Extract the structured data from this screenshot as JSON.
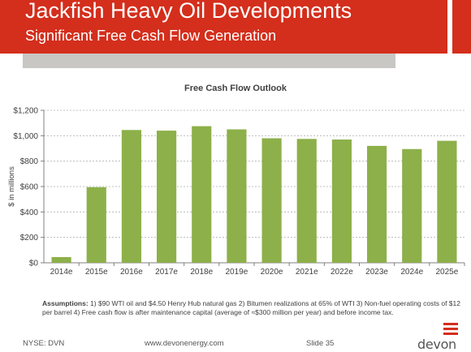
{
  "slide": {
    "title": "Jackfish Heavy Oil Developments",
    "subtitle": "Significant Free Cash Flow Generation",
    "colors": {
      "brand_red": "#d42e1c",
      "header_grey": "#c9c7c4",
      "bar_green": "#8db04a"
    }
  },
  "chart_data": {
    "type": "bar",
    "title": "Free Cash Flow Outlook",
    "ylabel": "$ in millions",
    "xlabel": "",
    "categories": [
      "2014e",
      "2015e",
      "2016e",
      "2017e",
      "2018e",
      "2019e",
      "2020e",
      "2021e",
      "2022e",
      "2023e",
      "2024e",
      "2025e"
    ],
    "values": [
      45,
      595,
      1045,
      1040,
      1075,
      1050,
      980,
      975,
      970,
      920,
      895,
      960
    ],
    "ylim": [
      0,
      1200
    ],
    "yticks": [
      0,
      200,
      400,
      600,
      800,
      1000,
      1200
    ],
    "ytick_labels": [
      "$0",
      "$200",
      "$400",
      "$600",
      "$800",
      "$1,000",
      "$1,200"
    ],
    "grid": true,
    "legend": "none"
  },
  "assumptions": {
    "label": "Assumptions:",
    "text": "1) $90 WTI oil and $4.50 Henry Hub natural gas 2) Bitumen realizations at 65% of WTI  3) Non-fuel operating costs of $12 per barrel  4) Free cash flow is after maintenance capital (average of ≈$300 million per year) and before income tax."
  },
  "footer": {
    "ticker": "NYSE: DVN",
    "website": "www.devonenergy.com",
    "slide_label": "Slide 35",
    "logo_text": "devon"
  }
}
